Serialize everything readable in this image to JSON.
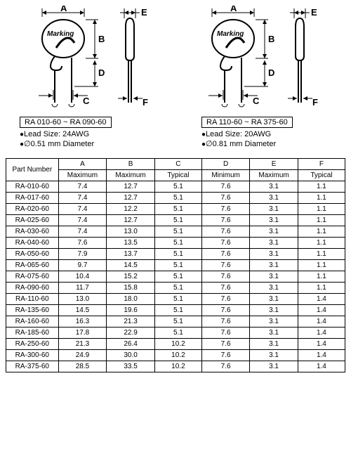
{
  "diagram": {
    "marking_label": "Marking",
    "dim_labels": {
      "A": "A",
      "B": "B",
      "C": "C",
      "D": "D",
      "E": "E",
      "F": "F"
    }
  },
  "specs": [
    {
      "range": "RA 010-60 ~ RA 090-60",
      "lead_size": "Lead Size: 24AWG",
      "diameter": "0.51 mm Diameter"
    },
    {
      "range": "RA 110-60 ~ RA 375-60",
      "lead_size": "Lead Size: 20AWG",
      "diameter": "0.81 mm Diameter"
    }
  ],
  "table": {
    "part_header": "Part Number",
    "columns": [
      "A",
      "B",
      "C",
      "D",
      "E",
      "F"
    ],
    "sub_headers": [
      "Maximum",
      "Maximum",
      "Typical",
      "Minimum",
      "Maximum",
      "Typical"
    ],
    "rows": [
      {
        "part": "RA-010-60",
        "v": [
          "7.4",
          "12.7",
          "5.1",
          "7.6",
          "3.1",
          "1.1"
        ]
      },
      {
        "part": "RA-017-60",
        "v": [
          "7.4",
          "12.7",
          "5.1",
          "7.6",
          "3.1",
          "1.1"
        ]
      },
      {
        "part": "RA-020-60",
        "v": [
          "7.4",
          "12.2",
          "5.1",
          "7.6",
          "3.1",
          "1.1"
        ]
      },
      {
        "part": "RA-025-60",
        "v": [
          "7.4",
          "12.7",
          "5.1",
          "7.6",
          "3.1",
          "1.1"
        ]
      },
      {
        "part": "RA-030-60",
        "v": [
          "7.4",
          "13.0",
          "5.1",
          "7.6",
          "3.1",
          "1.1"
        ]
      },
      {
        "part": "RA-040-60",
        "v": [
          "7.6",
          "13.5",
          "5.1",
          "7.6",
          "3.1",
          "1.1"
        ]
      },
      {
        "part": "RA-050-60",
        "v": [
          "7.9",
          "13.7",
          "5.1",
          "7.6",
          "3.1",
          "1.1"
        ]
      },
      {
        "part": "RA-065-60",
        "v": [
          "9.7",
          "14.5",
          "5.1",
          "7.6",
          "3.1",
          "1.1"
        ]
      },
      {
        "part": "RA-075-60",
        "v": [
          "10.4",
          "15.2",
          "5.1",
          "7.6",
          "3.1",
          "1.1"
        ]
      },
      {
        "part": "RA-090-60",
        "v": [
          "11.7",
          "15.8",
          "5.1",
          "7.6",
          "3.1",
          "1.1"
        ]
      },
      {
        "part": "RA-110-60",
        "v": [
          "13.0",
          "18.0",
          "5.1",
          "7.6",
          "3.1",
          "1.4"
        ]
      },
      {
        "part": "RA-135-60",
        "v": [
          "14.5",
          "19.6",
          "5.1",
          "7.6",
          "3.1",
          "1.4"
        ]
      },
      {
        "part": "RA-160-60",
        "v": [
          "16.3",
          "21.3",
          "5.1",
          "7.6",
          "3.1",
          "1.4"
        ]
      },
      {
        "part": "RA-185-60",
        "v": [
          "17.8",
          "22.9",
          "5.1",
          "7.6",
          "3.1",
          "1.4"
        ]
      },
      {
        "part": "RA-250-60",
        "v": [
          "21.3",
          "26.4",
          "10.2",
          "7.6",
          "3.1",
          "1.4"
        ]
      },
      {
        "part": "RA-300-60",
        "v": [
          "24.9",
          "30.0",
          "10.2",
          "7.6",
          "3.1",
          "1.4"
        ]
      },
      {
        "part": "RA-375-60",
        "v": [
          "28.5",
          "33.5",
          "10.2",
          "7.6",
          "3.1",
          "1.4"
        ]
      }
    ]
  }
}
